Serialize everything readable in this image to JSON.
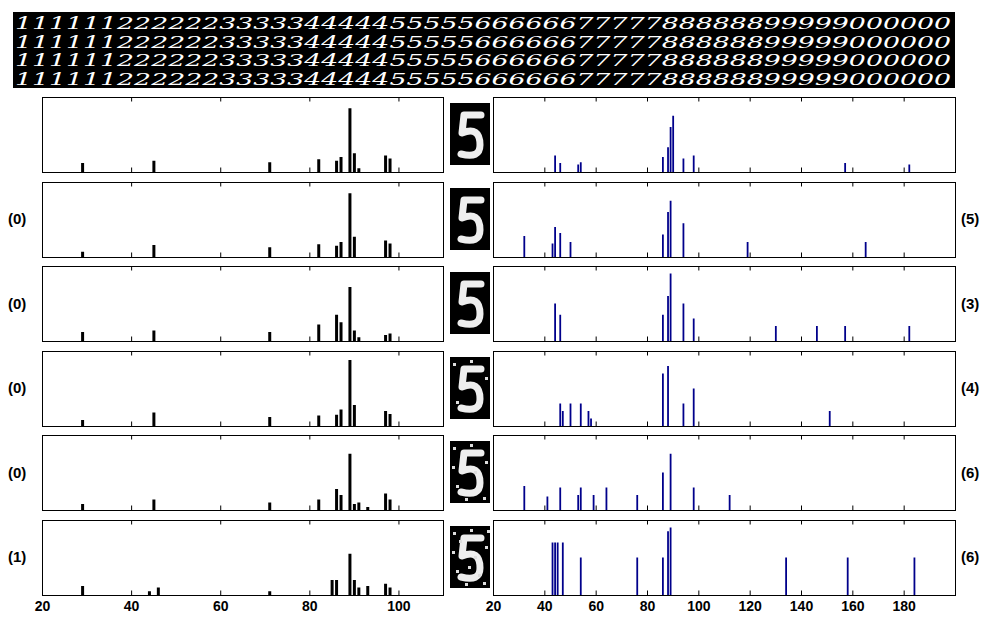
{
  "digit_strip": {
    "rows": [
      "1111112222223333344444555556666667777788888899999000000",
      "1111112222223333344444555556666667777788888899999000000",
      "1111112222223333344444555556666667777788888899999000000",
      "1111112222223333344444555556666667777788888899999000000"
    ]
  },
  "chart_data": [
    {
      "type": "stem",
      "x": [
        29,
        45,
        71,
        82,
        86,
        87,
        89,
        90,
        91,
        97,
        98
      ],
      "values": [
        0.12,
        0.15,
        0.13,
        0.17,
        0.15,
        0.2,
        0.85,
        0.25,
        0.05,
        0.22,
        0.18
      ],
      "color": "#000000",
      "xlim": [
        20,
        110
      ],
      "xticks": [
        20,
        40,
        60,
        80,
        100
      ],
      "ylim": [
        0,
        1
      ],
      "tick_labels": false
    },
    {
      "type": "stem",
      "x": [
        44,
        46,
        53,
        54,
        86,
        88,
        89,
        90,
        94,
        98,
        157,
        182
      ],
      "values": [
        0.22,
        0.12,
        0.1,
        0.13,
        0.2,
        0.33,
        0.6,
        0.75,
        0.18,
        0.22,
        0.12,
        0.1
      ],
      "color": "#00008b",
      "xlim": [
        20,
        200
      ],
      "xticks": [
        20,
        40,
        60,
        80,
        100,
        120,
        140,
        160,
        180
      ],
      "ylim": [
        0,
        1
      ],
      "tick_labels": false
    },
    {
      "type": "stem",
      "x": [
        29,
        45,
        71,
        82,
        86,
        87,
        89,
        90,
        97,
        98
      ],
      "values": [
        0.07,
        0.16,
        0.13,
        0.17,
        0.15,
        0.2,
        0.85,
        0.27,
        0.22,
        0.18
      ],
      "color": "#000000",
      "xlim": [
        20,
        110
      ],
      "xticks": [
        20,
        40,
        60,
        80,
        100
      ],
      "ylim": [
        0,
        1
      ],
      "tick_labels": false,
      "annotation": "(0)"
    },
    {
      "type": "stem",
      "x": [
        32,
        43,
        44,
        46,
        50,
        86,
        88,
        89,
        94,
        119,
        165
      ],
      "values": [
        0.28,
        0.18,
        0.4,
        0.32,
        0.2,
        0.3,
        0.6,
        0.75,
        0.45,
        0.2,
        0.2
      ],
      "color": "#00008b",
      "xlim": [
        20,
        200
      ],
      "xticks": [
        20,
        40,
        60,
        80,
        100,
        120,
        140,
        160,
        180
      ],
      "ylim": [
        0,
        1
      ],
      "tick_labels": false,
      "annotation": "(5)"
    },
    {
      "type": "stem",
      "x": [
        29,
        45,
        71,
        82,
        86,
        87,
        89,
        90,
        91,
        97,
        98
      ],
      "values": [
        0.12,
        0.14,
        0.12,
        0.22,
        0.35,
        0.25,
        0.72,
        0.14,
        0.05,
        0.08,
        0.1
      ],
      "color": "#000000",
      "xlim": [
        20,
        110
      ],
      "xticks": [
        20,
        40,
        60,
        80,
        100
      ],
      "ylim": [
        0,
        1
      ],
      "tick_labels": false,
      "annotation": "(0)"
    },
    {
      "type": "stem",
      "x": [
        44,
        46,
        86,
        88,
        89,
        94,
        98,
        130,
        146,
        157,
        182
      ],
      "values": [
        0.5,
        0.35,
        0.35,
        0.6,
        0.9,
        0.5,
        0.3,
        0.2,
        0.2,
        0.2,
        0.2
      ],
      "color": "#00008b",
      "xlim": [
        20,
        200
      ],
      "xticks": [
        20,
        40,
        60,
        80,
        100,
        120,
        140,
        160,
        180
      ],
      "ylim": [
        0,
        1
      ],
      "tick_labels": false,
      "annotation": "(3)"
    },
    {
      "type": "stem",
      "x": [
        29,
        45,
        71,
        82,
        86,
        87,
        89,
        90,
        97,
        98
      ],
      "values": [
        0.08,
        0.18,
        0.12,
        0.14,
        0.15,
        0.22,
        0.88,
        0.28,
        0.2,
        0.16
      ],
      "color": "#000000",
      "xlim": [
        20,
        110
      ],
      "xticks": [
        20,
        40,
        60,
        80,
        100
      ],
      "ylim": [
        0,
        1
      ],
      "tick_labels": false,
      "annotation": "(0)"
    },
    {
      "type": "stem",
      "x": [
        46,
        47,
        50,
        54,
        57,
        58,
        86,
        88,
        94,
        98,
        151
      ],
      "values": [
        0.3,
        0.2,
        0.3,
        0.3,
        0.2,
        0.1,
        0.7,
        0.8,
        0.3,
        0.5,
        0.2
      ],
      "color": "#00008b",
      "xlim": [
        20,
        200
      ],
      "xticks": [
        20,
        40,
        60,
        80,
        100,
        120,
        140,
        160,
        180
      ],
      "ylim": [
        0,
        1
      ],
      "tick_labels": false,
      "annotation": "(4)"
    },
    {
      "type": "stem",
      "x": [
        29,
        45,
        71,
        82,
        86,
        87,
        89,
        90,
        91,
        93,
        97,
        98
      ],
      "values": [
        0.08,
        0.14,
        0.1,
        0.14,
        0.28,
        0.2,
        0.75,
        0.08,
        0.1,
        0.04,
        0.22,
        0.14
      ],
      "color": "#000000",
      "xlim": [
        20,
        110
      ],
      "xticks": [
        20,
        40,
        60,
        80,
        100
      ],
      "ylim": [
        0,
        1
      ],
      "tick_labels": false,
      "annotation": "(0)"
    },
    {
      "type": "stem",
      "x": [
        32,
        41,
        46,
        53,
        54,
        59,
        64,
        76,
        86,
        89,
        98,
        112
      ],
      "values": [
        0.32,
        0.18,
        0.3,
        0.2,
        0.3,
        0.2,
        0.3,
        0.2,
        0.5,
        0.75,
        0.3,
        0.2
      ],
      "color": "#00008b",
      "xlim": [
        20,
        200
      ],
      "xticks": [
        20,
        40,
        60,
        80,
        100,
        120,
        140,
        160,
        180
      ],
      "ylim": [
        0,
        1
      ],
      "tick_labels": false,
      "annotation": "(6)"
    },
    {
      "type": "stem",
      "x": [
        29,
        44,
        46,
        71,
        85,
        86,
        89,
        90,
        91,
        93,
        97,
        98
      ],
      "values": [
        0.12,
        0.05,
        0.1,
        0.05,
        0.2,
        0.2,
        0.55,
        0.2,
        0.1,
        0.12,
        0.15,
        0.1
      ],
      "color": "#000000",
      "xlim": [
        20,
        110
      ],
      "xticks": [
        20,
        40,
        60,
        80,
        100
      ],
      "ylim": [
        0,
        1
      ],
      "tick_labels": "x",
      "annotation": "(1)"
    },
    {
      "type": "stem",
      "x": [
        43,
        44,
        45,
        47,
        54,
        76,
        86,
        88,
        89,
        134,
        158,
        184
      ],
      "values": [
        0.7,
        0.7,
        0.7,
        0.7,
        0.5,
        0.5,
        0.5,
        0.85,
        0.9,
        0.5,
        0.5,
        0.5
      ],
      "color": "#00008b",
      "xlim": [
        20,
        200
      ],
      "xticks": [
        20,
        40,
        60,
        80,
        100,
        120,
        140,
        160,
        180
      ],
      "ylim": [
        0,
        1
      ],
      "tick_labels": "x",
      "annotation": "(6)"
    }
  ]
}
